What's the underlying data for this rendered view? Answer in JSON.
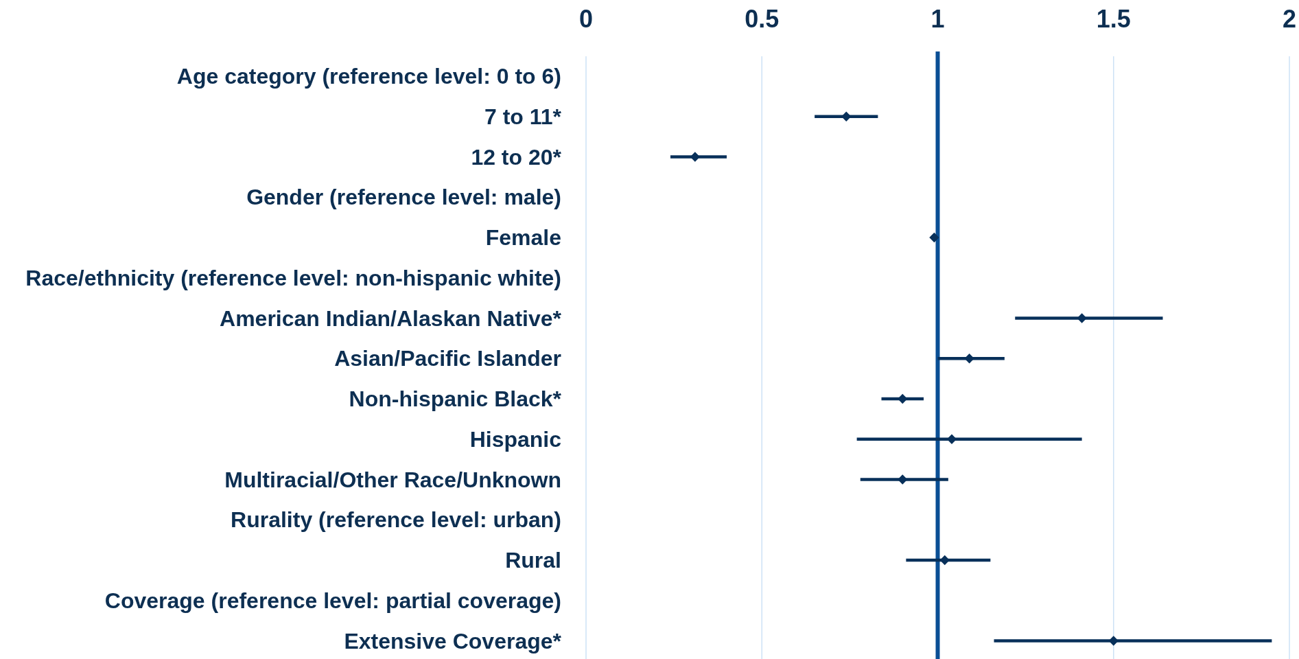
{
  "chart_data": {
    "type": "scatter",
    "orientation": "horizontal",
    "categories": [
      "Age category (reference level: 0 to 6)",
      "7 to 11*",
      "12 to 20*",
      "Gender (reference level: male)",
      "Female",
      "Race/ethnicity (reference level: non-hispanic white)",
      "American Indian/Alaskan Native*",
      "Asian/Pacific Islander",
      "Non-hispanic Black*",
      "Hispanic",
      "Multiracial/Other Race/Unknown",
      "Rurality (reference level: urban)",
      "Rural",
      "Coverage (reference level: partial coverage)",
      "Extensive Coverage*"
    ],
    "values": [
      null,
      0.74,
      0.31,
      null,
      0.99,
      null,
      1.41,
      1.09,
      0.9,
      1.04,
      0.9,
      null,
      1.02,
      null,
      1.5
    ],
    "errors": [
      null,
      [
        0.65,
        0.83
      ],
      [
        0.24,
        0.4
      ],
      null,
      null,
      null,
      [
        1.22,
        1.64
      ],
      [
        1.0,
        1.19
      ],
      [
        0.84,
        0.96
      ],
      [
        0.77,
        1.41
      ],
      [
        0.78,
        1.03
      ],
      null,
      [
        0.91,
        1.15
      ],
      null,
      [
        1.16,
        1.95
      ]
    ],
    "color": "#08305a",
    "marker": "diamond",
    "xlim": [
      0,
      2
    ],
    "xticks": [
      0,
      0.5,
      1,
      1.5,
      2
    ],
    "grid": "x",
    "ref_lines": [
      {
        "axis": "x",
        "value": 1,
        "color": "#0a4f95"
      }
    ]
  }
}
